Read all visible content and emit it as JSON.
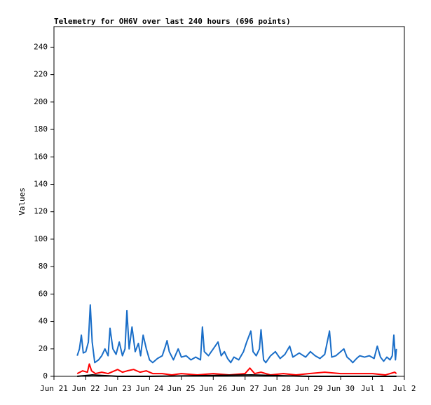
{
  "chart_data": {
    "type": "line",
    "title": "Telemetry for OH6V over last 240 hours (696 points)",
    "y_label": "Values",
    "xlim": [
      0,
      11
    ],
    "ylim": [
      0,
      255
    ],
    "xticks": [
      {
        "value": 0,
        "label": "Jun 21"
      },
      {
        "value": 1,
        "label": "Jun 22"
      },
      {
        "value": 2,
        "label": "Jun 23"
      },
      {
        "value": 3,
        "label": "Jun 24"
      },
      {
        "value": 4,
        "label": "Jun 25"
      },
      {
        "value": 5,
        "label": "Jun 26"
      },
      {
        "value": 6,
        "label": "Jun 27"
      },
      {
        "value": 7,
        "label": "Jun 28"
      },
      {
        "value": 8,
        "label": "Jun 29"
      },
      {
        "value": 9,
        "label": "Jun 30"
      },
      {
        "value": 10,
        "label": "Jul 1"
      },
      {
        "value": 11,
        "label": "Jul 2"
      }
    ],
    "yticks": [
      0,
      20,
      40,
      60,
      80,
      100,
      120,
      140,
      160,
      180,
      200,
      220,
      240
    ],
    "series": [
      {
        "color": "#1a6ec8",
        "x": [
          0.73,
          0.8,
          0.86,
          0.92,
          1.0,
          1.08,
          1.14,
          1.2,
          1.28,
          1.4,
          1.5,
          1.6,
          1.7,
          1.76,
          1.85,
          1.95,
          2.05,
          2.15,
          2.23,
          2.29,
          2.36,
          2.45,
          2.55,
          2.65,
          2.72,
          2.8,
          2.9,
          3.0,
          3.1,
          3.25,
          3.4,
          3.5,
          3.55,
          3.62,
          3.75,
          3.9,
          4.0,
          4.15,
          4.3,
          4.45,
          4.6,
          4.66,
          4.72,
          4.85,
          5.0,
          5.15,
          5.25,
          5.35,
          5.45,
          5.55,
          5.65,
          5.8,
          5.95,
          6.05,
          6.18,
          6.25,
          6.35,
          6.45,
          6.5,
          6.58,
          6.65,
          6.8,
          6.95,
          7.1,
          7.25,
          7.4,
          7.5,
          7.7,
          7.9,
          8.05,
          8.2,
          8.35,
          8.5,
          8.65,
          8.72,
          8.85,
          9.0,
          9.1,
          9.2,
          9.3,
          9.38,
          9.5,
          9.6,
          9.75,
          9.9,
          10.05,
          10.15,
          10.25,
          10.35,
          10.45,
          10.55,
          10.62,
          10.67,
          10.72,
          10.75
        ],
        "values": [
          15,
          20,
          30,
          17,
          18,
          25,
          52,
          25,
          10,
          12,
          15,
          20,
          15,
          35,
          20,
          16,
          25,
          15,
          20,
          48,
          20,
          36,
          18,
          24,
          15,
          30,
          20,
          12,
          10,
          13,
          15,
          22,
          26,
          18,
          12,
          20,
          14,
          15,
          12,
          14,
          12,
          36,
          18,
          15,
          20,
          25,
          15,
          18,
          13,
          10,
          14,
          12,
          18,
          25,
          33,
          18,
          15,
          20,
          34,
          12,
          10,
          15,
          18,
          13,
          16,
          22,
          14,
          17,
          14,
          18,
          15,
          13,
          16,
          33,
          14,
          15,
          18,
          20,
          14,
          12,
          10,
          13,
          15,
          14,
          15,
          13,
          22,
          14,
          11,
          14,
          12,
          15,
          30,
          12,
          20
        ]
      },
      {
        "color": "#ff0000",
        "x": [
          0.73,
          0.9,
          1.05,
          1.11,
          1.18,
          1.3,
          1.5,
          1.7,
          1.9,
          2.0,
          2.15,
          2.3,
          2.5,
          2.7,
          2.9,
          3.1,
          3.4,
          3.7,
          4.0,
          4.5,
          5.0,
          5.5,
          6.0,
          6.15,
          6.3,
          6.5,
          6.8,
          7.2,
          7.6,
          8.0,
          8.5,
          9.0,
          9.5,
          10.0,
          10.4,
          10.7,
          10.75
        ],
        "values": [
          2,
          4,
          3,
          9,
          4,
          2,
          3,
          2,
          4,
          5,
          3,
          4,
          5,
          3,
          4,
          2,
          2,
          1,
          2,
          1,
          2,
          1,
          2,
          6,
          2,
          3,
          1,
          2,
          1,
          2,
          3,
          2,
          2,
          2,
          1,
          3,
          2
        ]
      },
      {
        "color": "#000000",
        "x": [
          0.73,
          1.2,
          2.0,
          3.0,
          6.2,
          8.0,
          10.75
        ],
        "values": [
          0,
          1,
          0,
          0,
          1,
          0,
          0
        ]
      }
    ]
  }
}
